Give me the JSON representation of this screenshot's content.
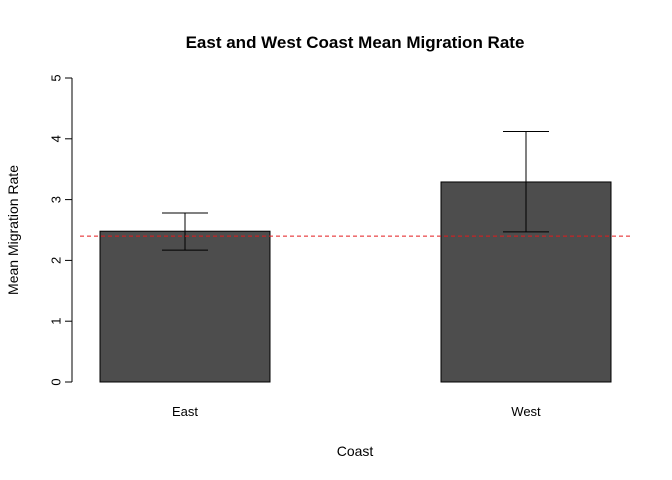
{
  "chart_data": {
    "type": "bar",
    "title": "East and West Coast Mean Migration Rate",
    "xlabel": "Coast",
    "ylabel": "Mean Migration Rate",
    "categories": [
      "East",
      "West"
    ],
    "values": [
      2.48,
      3.29
    ],
    "error_bars": [
      {
        "category": "East",
        "lower": 2.17,
        "upper": 2.78
      },
      {
        "category": "West",
        "lower": 2.47,
        "upper": 4.12
      }
    ],
    "reference_line": {
      "value": 2.4,
      "style": "dashed",
      "color": "#e41a1c"
    },
    "ylim": [
      0,
      5
    ],
    "yticks": [
      "0",
      "1",
      "2",
      "3",
      "4",
      "5"
    ],
    "bar_color": "#4d4d4d",
    "grid": false,
    "legend": "none"
  }
}
